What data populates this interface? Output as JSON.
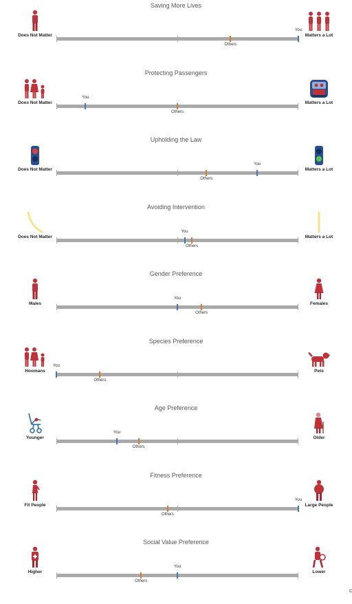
{
  "rows": [
    {
      "title": "Saving More Lives",
      "left_label": "Does Not Matter",
      "right_label": "Matters a Lot",
      "left_icon": "single-person-icon",
      "right_icon": "three-people-icon",
      "you": 1.0,
      "others": 0.72,
      "you_label": "You",
      "others_label": "Others"
    },
    {
      "title": "Protecting Passengers",
      "left_label": "Does Not Matter",
      "right_label": "Matters a Lot",
      "left_icon": "pedestrians-icon",
      "right_icon": "car-passengers-icon",
      "you": 0.12,
      "others": 0.5,
      "you_label": "You",
      "others_label": "Others"
    },
    {
      "title": "Upholding the Law",
      "left_label": "Does Not Matter",
      "right_label": "Matters a Lot",
      "left_icon": "red-traffic-light-icon",
      "right_icon": "green-traffic-light-icon",
      "you": 0.83,
      "others": 0.62,
      "you_label": "You",
      "others_label": "Others"
    },
    {
      "title": "Avoiding Intervention",
      "left_label": "Does Not Matter",
      "right_label": "Matters a Lot",
      "left_icon": "curved-path-icon",
      "right_icon": "straight-path-icon",
      "you": 0.53,
      "others": 0.56,
      "you_label": "You",
      "others_label": "Others"
    },
    {
      "title": "Gender Preference",
      "left_label": "Males",
      "right_label": "Females",
      "left_icon": "male-icon",
      "right_icon": "female-icon",
      "you": 0.5,
      "others": 0.6,
      "you_label": "You",
      "others_label": "Others"
    },
    {
      "title": "Species Preference",
      "left_label": "Hoomans",
      "right_label": "Pets",
      "left_icon": "humans-group-icon",
      "right_icon": "dog-icon",
      "you": 0.0,
      "others": 0.18,
      "you_label": "You",
      "others_label": "Others"
    },
    {
      "title": "Age Preference",
      "left_label": "Younger",
      "right_label": "Older",
      "left_icon": "stroller-icon",
      "right_icon": "elderly-person-icon",
      "you": 0.25,
      "others": 0.34,
      "you_label": "You",
      "others_label": "Others"
    },
    {
      "title": "Fitness Preference",
      "left_label": "Fit People",
      "right_label": "Large People",
      "left_icon": "fit-person-icon",
      "right_icon": "large-person-icon",
      "you": 1.0,
      "others": 0.46,
      "you_label": "You",
      "others_label": "Others"
    },
    {
      "title": "Social Value Preference",
      "left_label": "Higher",
      "right_label": "Lower",
      "left_icon": "doctor-icon",
      "right_icon": "criminal-icon",
      "you": 0.5,
      "others": 0.35,
      "you_label": "You",
      "others_label": "Others"
    }
  ],
  "corner_text": "c",
  "colors": {
    "you": "#3a78c2",
    "others": "#d87a2c",
    "figure": "#c0323a",
    "track": "#a9a9a9"
  }
}
